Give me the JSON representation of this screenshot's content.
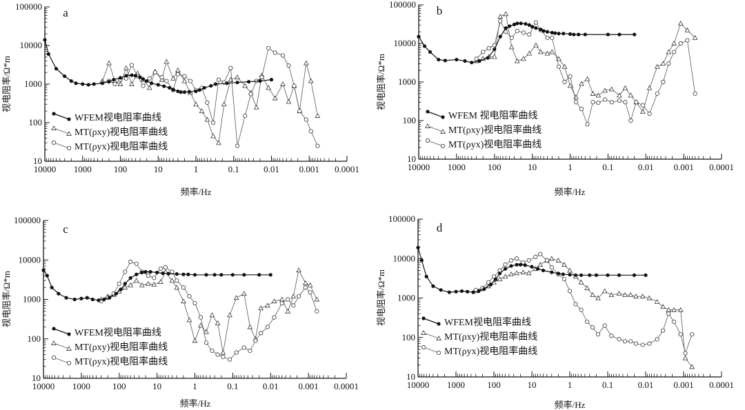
{
  "figure": {
    "x_tick_labels": [
      "10000",
      "1000",
      "100",
      "10",
      "1",
      "0.1",
      "0.01",
      "0.001",
      "0.0001"
    ],
    "y_tick_labels": [
      "10",
      "100",
      "1000",
      "10000",
      "100000"
    ],
    "xlabel": "频率/Hz",
    "ylabel": "视电阻率/Ω*m",
    "legend_labels": [
      "WFEM视电阻率曲线",
      "MT(ρxy)视电阻率曲线",
      "MT(ρyx)视电阻率曲线"
    ],
    "legend_labels_alt": [
      "WFEM 视电阻率曲线",
      "MT(ρxy)视电阻率曲线",
      "MT(ρyx)视电阻率曲线"
    ]
  },
  "chart_data": [
    {
      "type": "line",
      "panel_label": "a",
      "xlabel": "频率/Hz",
      "ylabel": "视电阻率/Ω*m",
      "x_scale": "log",
      "y_scale": "log",
      "xlim": [
        10000,
        0.0001
      ],
      "ylim": [
        10,
        100000
      ],
      "legend_position": "lower-left",
      "series": [
        {
          "name": "WFEM视电阻率曲线",
          "marker": "filled-circle",
          "x": [
            10000,
            8000,
            5000,
            3000,
            2000,
            1500,
            1000,
            700,
            500,
            300,
            200,
            150,
            100,
            70,
            50,
            40,
            30,
            25,
            20,
            15,
            10,
            7,
            5,
            4,
            3,
            2.5,
            2,
            1.5,
            1,
            0.8,
            0.6,
            0.4,
            0.3,
            0.15,
            0.08,
            0.04,
            0.02,
            0.01
          ],
          "y": [
            14000,
            6000,
            2500,
            1600,
            1200,
            1050,
            1000,
            960,
            1000,
            1050,
            1150,
            1300,
            1450,
            1650,
            1700,
            1650,
            1500,
            1350,
            1200,
            1050,
            960,
            880,
            800,
            720,
            650,
            620,
            620,
            630,
            650,
            700,
            800,
            900,
            1000,
            1050,
            1100,
            1150,
            1200,
            1300
          ]
        },
        {
          "name": "MT(ρxy)视电阻率曲线",
          "marker": "open-triangle",
          "x": [
            300,
            200,
            140,
            100,
            70,
            50,
            35,
            25,
            17,
            12,
            8,
            6,
            4,
            3,
            2,
            1.4,
            1,
            0.7,
            0.5,
            0.35,
            0.25,
            0.18,
            0.12,
            0.08,
            0.05,
            0.035,
            0.025,
            0.018,
            0.012,
            0.008,
            0.005,
            0.0035,
            0.0025,
            0.0018,
            0.0012,
            0.0009,
            0.0006
          ],
          "y": [
            1200,
            3500,
            1200,
            1000,
            2600,
            1000,
            1900,
            1300,
            800,
            2100,
            1300,
            3800,
            1400,
            2300,
            1200,
            600,
            300,
            200,
            120,
            45,
            30,
            300,
            1300,
            1500,
            900,
            600,
            250,
            1700,
            800,
            430,
            1000,
            350,
            900,
            200,
            3500,
            1200,
            150
          ]
        },
        {
          "name": "MT(ρyx)视电阻率曲线",
          "marker": "open-circle",
          "x": [
            300,
            200,
            140,
            100,
            70,
            50,
            35,
            25,
            17,
            12,
            8,
            6,
            4,
            3,
            2,
            1.4,
            1,
            0.7,
            0.5,
            0.35,
            0.25,
            0.18,
            0.12,
            0.08,
            0.05,
            0.035,
            0.025,
            0.018,
            0.012,
            0.008,
            0.005,
            0.0035,
            0.0025,
            0.0018,
            0.0012,
            0.0009,
            0.0006
          ],
          "y": [
            1100,
            1200,
            1000,
            1300,
            1400,
            3100,
            1600,
            900,
            1400,
            2000,
            1500,
            1200,
            700,
            1800,
            1600,
            1200,
            700,
            800,
            330,
            100,
            1300,
            1100,
            2600,
            25,
            150,
            550,
            1200,
            1500,
            8500,
            6500,
            5500,
            3000,
            900,
            200,
            120,
            60,
            25
          ]
        }
      ]
    },
    {
      "type": "line",
      "panel_label": "b",
      "xlabel": "频率/Hz",
      "ylabel": "视电阻率/Ω*m",
      "x_scale": "log",
      "y_scale": "log",
      "xlim": [
        10000,
        0.0001
      ],
      "ylim": [
        10,
        100000
      ],
      "legend_position": "lower-left",
      "series": [
        {
          "name": "WFEM 视电阻率曲线",
          "marker": "filled-circle",
          "x": [
            10000,
            7000,
            5000,
            3000,
            2000,
            1000,
            600,
            400,
            250,
            150,
            100,
            70,
            50,
            40,
            30,
            25,
            20,
            15,
            12,
            10,
            8,
            6,
            5,
            4,
            3,
            2.5,
            2,
            1.5,
            1,
            0.8,
            0.6,
            0.4,
            0.1,
            0.05,
            0.02
          ],
          "y": [
            15000,
            8500,
            6000,
            3800,
            3600,
            3800,
            3500,
            3200,
            3500,
            4200,
            7000,
            15000,
            25000,
            28000,
            31000,
            33000,
            33000,
            32000,
            30000,
            27000,
            25000,
            23000,
            21000,
            20000,
            19000,
            18500,
            18000,
            18000,
            17500,
            17000,
            17000,
            17000,
            17000,
            17000,
            17000
          ]
        },
        {
          "name": "MT(ρxy)视电阻率曲线",
          "marker": "open-triangle",
          "x": [
            300,
            200,
            140,
            100,
            70,
            50,
            35,
            25,
            17,
            12,
            8,
            6,
            4,
            3,
            2,
            1.4,
            1,
            0.7,
            0.5,
            0.35,
            0.25,
            0.18,
            0.12,
            0.08,
            0.05,
            0.035,
            0.025,
            0.018,
            0.012,
            0.008,
            0.005,
            0.0035,
            0.0025,
            0.0018,
            0.0012,
            0.0008,
            0.0005
          ],
          "y": [
            3500,
            4000,
            4500,
            4500,
            50000,
            58000,
            8000,
            3500,
            4000,
            5500,
            9000,
            6000,
            5500,
            6000,
            4000,
            2500,
            800,
            400,
            900,
            1200,
            500,
            450,
            600,
            650,
            450,
            700,
            450,
            300,
            170,
            700,
            2500,
            3000,
            6000,
            10000,
            33000,
            22000,
            14000
          ]
        },
        {
          "name": "MT(ρyx)视电阻率曲线",
          "marker": "open-circle",
          "x": [
            300,
            200,
            140,
            100,
            70,
            50,
            35,
            25,
            17,
            12,
            8,
            6,
            4,
            3,
            2,
            1.4,
            1,
            0.7,
            0.5,
            0.35,
            0.25,
            0.18,
            0.12,
            0.08,
            0.05,
            0.035,
            0.025,
            0.018,
            0.012,
            0.008,
            0.005,
            0.0035,
            0.0025,
            0.0018,
            0.0012,
            0.0008,
            0.0005
          ],
          "y": [
            4000,
            6000,
            7500,
            9000,
            38000,
            20000,
            14000,
            21000,
            19000,
            17000,
            35000,
            22000,
            14000,
            14000,
            2500,
            1000,
            1400,
            300,
            200,
            80,
            300,
            290,
            350,
            300,
            330,
            300,
            100,
            300,
            250,
            150,
            500,
            1000,
            3000,
            6000,
            10000,
            12000,
            500
          ]
        }
      ]
    },
    {
      "type": "line",
      "panel_label": "c",
      "xlabel": "频率/Hz",
      "ylabel": "视电阻率/Ω*m",
      "x_scale": "log",
      "y_scale": "log",
      "xlim": [
        10000,
        0.0001
      ],
      "ylim": [
        10,
        100000
      ],
      "legend_position": "lower-left",
      "series": [
        {
          "name": "WFEM视电阻率曲线",
          "marker": "filled-circle",
          "x": [
            10000,
            8000,
            6000,
            4000,
            2500,
            1500,
            1000,
            700,
            500,
            350,
            250,
            180,
            120,
            90,
            70,
            50,
            35,
            25,
            20,
            15,
            10,
            7,
            5,
            3,
            2,
            1.5,
            1,
            0.5,
            0.3,
            0.2,
            0.1,
            0.05,
            0.02,
            0.01
          ],
          "y": [
            5500,
            4000,
            2000,
            1400,
            1100,
            1000,
            1050,
            1100,
            1000,
            950,
            1000,
            1100,
            1400,
            1800,
            2500,
            3500,
            4300,
            4800,
            5000,
            5000,
            4800,
            4600,
            4500,
            4400,
            4300,
            4300,
            4200,
            4200,
            4200,
            4200,
            4200,
            4200,
            4200,
            4200
          ]
        },
        {
          "name": "MT(ρxy)视电阻率曲线",
          "marker": "open-triangle",
          "x": [
            300,
            200,
            140,
            100,
            70,
            50,
            35,
            25,
            17,
            12,
            8,
            6,
            4,
            3,
            2,
            1.4,
            1,
            0.7,
            0.5,
            0.35,
            0.25,
            0.18,
            0.12,
            0.08,
            0.05,
            0.035,
            0.025,
            0.018,
            0.012,
            0.008,
            0.005,
            0.0035,
            0.0025,
            0.0018,
            0.0012,
            0.0009,
            0.0006
          ],
          "y": [
            1000,
            1200,
            1300,
            1600,
            2000,
            2300,
            3000,
            2300,
            2500,
            2400,
            2800,
            5000,
            3000,
            2000,
            900,
            300,
            90,
            220,
            150,
            400,
            250,
            45,
            400,
            1100,
            1400,
            200,
            100,
            600,
            700,
            900,
            1000,
            500,
            1200,
            5500,
            2600,
            2300,
            1000
          ]
        },
        {
          "name": "MT(ρyx)视电阻率曲线",
          "marker": "open-circle",
          "x": [
            300,
            200,
            140,
            100,
            70,
            50,
            35,
            25,
            17,
            12,
            8,
            6,
            4,
            3,
            2,
            1.4,
            1,
            0.7,
            0.5,
            0.35,
            0.25,
            0.18,
            0.12,
            0.08,
            0.05,
            0.035,
            0.025,
            0.018,
            0.012,
            0.008,
            0.005,
            0.0035,
            0.0025,
            0.0018,
            0.0012,
            0.0009,
            0.0006
          ],
          "y": [
            900,
            1100,
            1400,
            2500,
            5000,
            9000,
            8000,
            5000,
            4000,
            3500,
            6000,
            6500,
            5000,
            3000,
            2000,
            1200,
            800,
            350,
            80,
            50,
            40,
            35,
            30,
            45,
            60,
            50,
            90,
            140,
            200,
            350,
            800,
            1000,
            700,
            1200,
            2000,
            1500,
            500
          ]
        }
      ]
    },
    {
      "type": "line",
      "panel_label": "d",
      "xlabel": "频率/Hz",
      "ylabel": "视电阻率/Ω*m",
      "x_scale": "log",
      "y_scale": "log",
      "xlim": [
        10000,
        0.0001
      ],
      "ylim": [
        10,
        100000
      ],
      "legend_position": "lower-left",
      "series": [
        {
          "name": "WFEM视电阻率曲线",
          "marker": "filled-circle",
          "x": [
            10000,
            8000,
            6000,
            4000,
            2500,
            1500,
            1000,
            700,
            500,
            350,
            250,
            180,
            120,
            90,
            70,
            50,
            35,
            25,
            20,
            15,
            10,
            7,
            5,
            3,
            2,
            1.5,
            1,
            0.7,
            0.5,
            0.3,
            0.2,
            0.1,
            0.05,
            0.02,
            0.01
          ],
          "y": [
            19000,
            9000,
            3500,
            2000,
            1600,
            1400,
            1450,
            1500,
            1450,
            1400,
            1500,
            1700,
            2200,
            3000,
            4200,
            5500,
            6500,
            7000,
            7000,
            6800,
            6200,
            5500,
            5000,
            4500,
            4200,
            4000,
            3900,
            3800,
            3800,
            3800,
            3800,
            3800,
            3800,
            3800,
            3800
          ]
        },
        {
          "name": "MT(ρxy)视电阻率曲线",
          "marker": "open-triangle",
          "x": [
            300,
            200,
            140,
            100,
            70,
            50,
            35,
            25,
            17,
            12,
            8,
            6,
            4,
            3,
            2,
            1.4,
            1,
            0.7,
            0.5,
            0.35,
            0.25,
            0.18,
            0.12,
            0.08,
            0.05,
            0.035,
            0.025,
            0.018,
            0.012,
            0.008,
            0.005,
            0.0035,
            0.0025,
            0.0018,
            0.0012,
            0.0009,
            0.0006
          ],
          "y": [
            1500,
            1700,
            2000,
            2500,
            3000,
            3500,
            4000,
            4300,
            4500,
            4300,
            5500,
            7000,
            9000,
            10000,
            9000,
            7000,
            5000,
            3500,
            2500,
            1800,
            1200,
            1000,
            1500,
            1200,
            1300,
            1200,
            1200,
            1100,
            1100,
            1000,
            800,
            600,
            500,
            500,
            500,
            30,
            18
          ]
        },
        {
          "name": "MT(ρyx)视电阻率曲线",
          "marker": "open-circle",
          "x": [
            300,
            200,
            140,
            100,
            70,
            50,
            35,
            25,
            17,
            12,
            8,
            6,
            4,
            3,
            2,
            1.4,
            1,
            0.7,
            0.5,
            0.35,
            0.25,
            0.18,
            0.12,
            0.08,
            0.05,
            0.035,
            0.025,
            0.018,
            0.012,
            0.008,
            0.005,
            0.0035,
            0.0025,
            0.0018,
            0.0012,
            0.0009,
            0.0006
          ],
          "y": [
            1600,
            1800,
            2500,
            3500,
            5000,
            7000,
            9000,
            10000,
            8000,
            9000,
            11000,
            13000,
            9000,
            6000,
            4000,
            3000,
            1500,
            700,
            500,
            250,
            180,
            120,
            200,
            110,
            90,
            80,
            80,
            70,
            65,
            70,
            90,
            150,
            400,
            250,
            120,
            40,
            120
          ]
        }
      ]
    }
  ]
}
